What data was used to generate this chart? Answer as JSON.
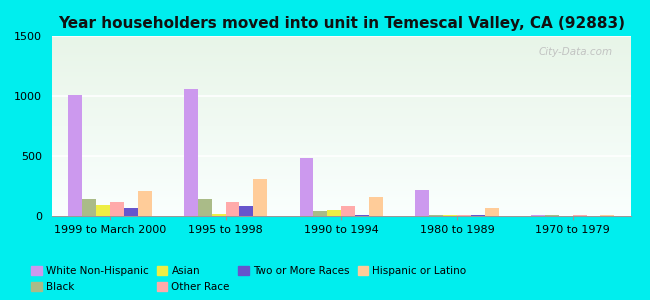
{
  "title": "Year householders moved into unit in Temescal Valley, CA (92883)",
  "categories": [
    "1999 to March 2000",
    "1995 to 1998",
    "1990 to 1994",
    "1980 to 1989",
    "1970 to 1979"
  ],
  "series": {
    "White Non-Hispanic": [
      1005,
      1055,
      480,
      220,
      5
    ],
    "Black": [
      140,
      140,
      45,
      5,
      5
    ],
    "Asian": [
      90,
      20,
      50,
      5,
      2
    ],
    "Other Race": [
      120,
      115,
      80,
      5,
      5
    ],
    "Two or More Races": [
      70,
      85,
      5,
      5,
      2
    ],
    "Hispanic or Latino": [
      205,
      305,
      155,
      65,
      5
    ]
  },
  "colors": {
    "White Non-Hispanic": "#cc99ee",
    "Black": "#aabb88",
    "Asian": "#eeee44",
    "Other Race": "#ffaaaa",
    "Two or More Races": "#6655cc",
    "Hispanic or Latino": "#ffcc99"
  },
  "ylim": [
    0,
    1500
  ],
  "yticks": [
    0,
    500,
    1000,
    1500
  ],
  "outer_bg": "#00eeee",
  "plot_bg_colors": [
    "#f0faf0",
    "#fafffa"
  ],
  "watermark": "City-Data.com",
  "legend_row1": [
    "White Non-Hispanic",
    "Black",
    "Asian",
    "Other Race"
  ],
  "legend_row2": [
    "Two or More Races",
    "Hispanic or Latino"
  ],
  "title_fontsize": 11,
  "tick_fontsize": 8
}
